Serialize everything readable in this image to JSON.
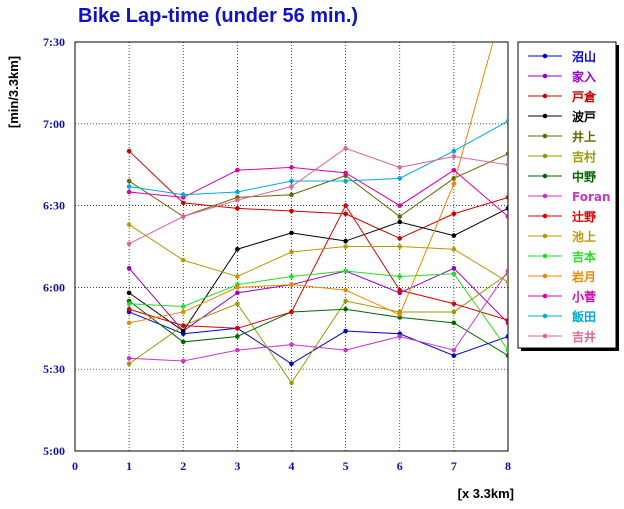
{
  "chart_data": {
    "type": "line",
    "title": "Bike Lap-time (under 56 min.)",
    "xlabel": "[x 3.3km]",
    "ylabel": "[min/3.3km]",
    "xlim": [
      0,
      8
    ],
    "ylim": [
      300,
      450
    ],
    "x_ticks": [
      "0",
      "1",
      "2",
      "3",
      "4",
      "5",
      "6",
      "7",
      "8"
    ],
    "y_ticks": [
      {
        "value": 300,
        "label": "5:00"
      },
      {
        "value": 330,
        "label": "5:30"
      },
      {
        "value": 360,
        "label": "6:00"
      },
      {
        "value": 390,
        "label": "6:30"
      },
      {
        "value": 420,
        "label": "7:00"
      },
      {
        "value": 450,
        "label": "7:30"
      }
    ],
    "grid": true,
    "legend_position": "right",
    "x": [
      1,
      2,
      3,
      4,
      5,
      6,
      7,
      8
    ],
    "series": [
      {
        "name": "沼山",
        "color": "#0000cc",
        "values": [
          351,
          343,
          345,
          332,
          344,
          343,
          335,
          342
        ]
      },
      {
        "name": "家入",
        "color": "#9900cc",
        "values": [
          367,
          344,
          358,
          361,
          366,
          358,
          367,
          347
        ]
      },
      {
        "name": "戸倉",
        "color": "#cc0000",
        "values": [
          410,
          391,
          389,
          388,
          387,
          378,
          387,
          393
        ]
      },
      {
        "name": "波戸",
        "color": "#000000",
        "values": [
          358,
          344,
          374,
          380,
          377,
          384,
          379,
          389
        ]
      },
      {
        "name": "井上",
        "color": "#666600",
        "values": [
          399,
          386,
          393,
          394,
          401,
          386,
          400,
          409
        ]
      },
      {
        "name": "吉村",
        "color": "#999900",
        "values": [
          332,
          346,
          354,
          325,
          355,
          351,
          351,
          365
        ]
      },
      {
        "name": "中野",
        "color": "#006600",
        "values": [
          355,
          340,
          342,
          351,
          352,
          349,
          347,
          335
        ]
      },
      {
        "name": "Foran",
        "color": "#cc33cc",
        "values": [
          334,
          333,
          337,
          339,
          337,
          342,
          337,
          366
        ]
      },
      {
        "name": "辻野",
        "color": "#dd0000",
        "values": [
          352,
          346,
          345,
          351,
          390,
          359,
          354,
          348
        ]
      },
      {
        "name": "池上",
        "color": "#bb9900",
        "values": [
          383,
          370,
          364,
          373,
          375,
          375,
          374,
          362
        ]
      },
      {
        "name": "吉本",
        "color": "#22dd22",
        "values": [
          354,
          353,
          361,
          364,
          366,
          364,
          365,
          337
        ]
      },
      {
        "name": "岩月",
        "color": "#ee8800",
        "values": [
          347,
          351,
          360,
          361,
          359,
          350,
          398,
          470
        ]
      },
      {
        "name": "小菅",
        "color": "#dd00aa",
        "values": [
          395,
          393,
          403,
          404,
          402,
          390,
          403,
          386
        ]
      },
      {
        "name": "飯田",
        "color": "#00aadd",
        "values": [
          397,
          394,
          395,
          399,
          399,
          400,
          410,
          421
        ]
      },
      {
        "name": "吉井",
        "color": "#dd6699",
        "values": [
          376,
          386,
          392,
          397,
          411,
          404,
          408,
          405
        ]
      }
    ]
  }
}
